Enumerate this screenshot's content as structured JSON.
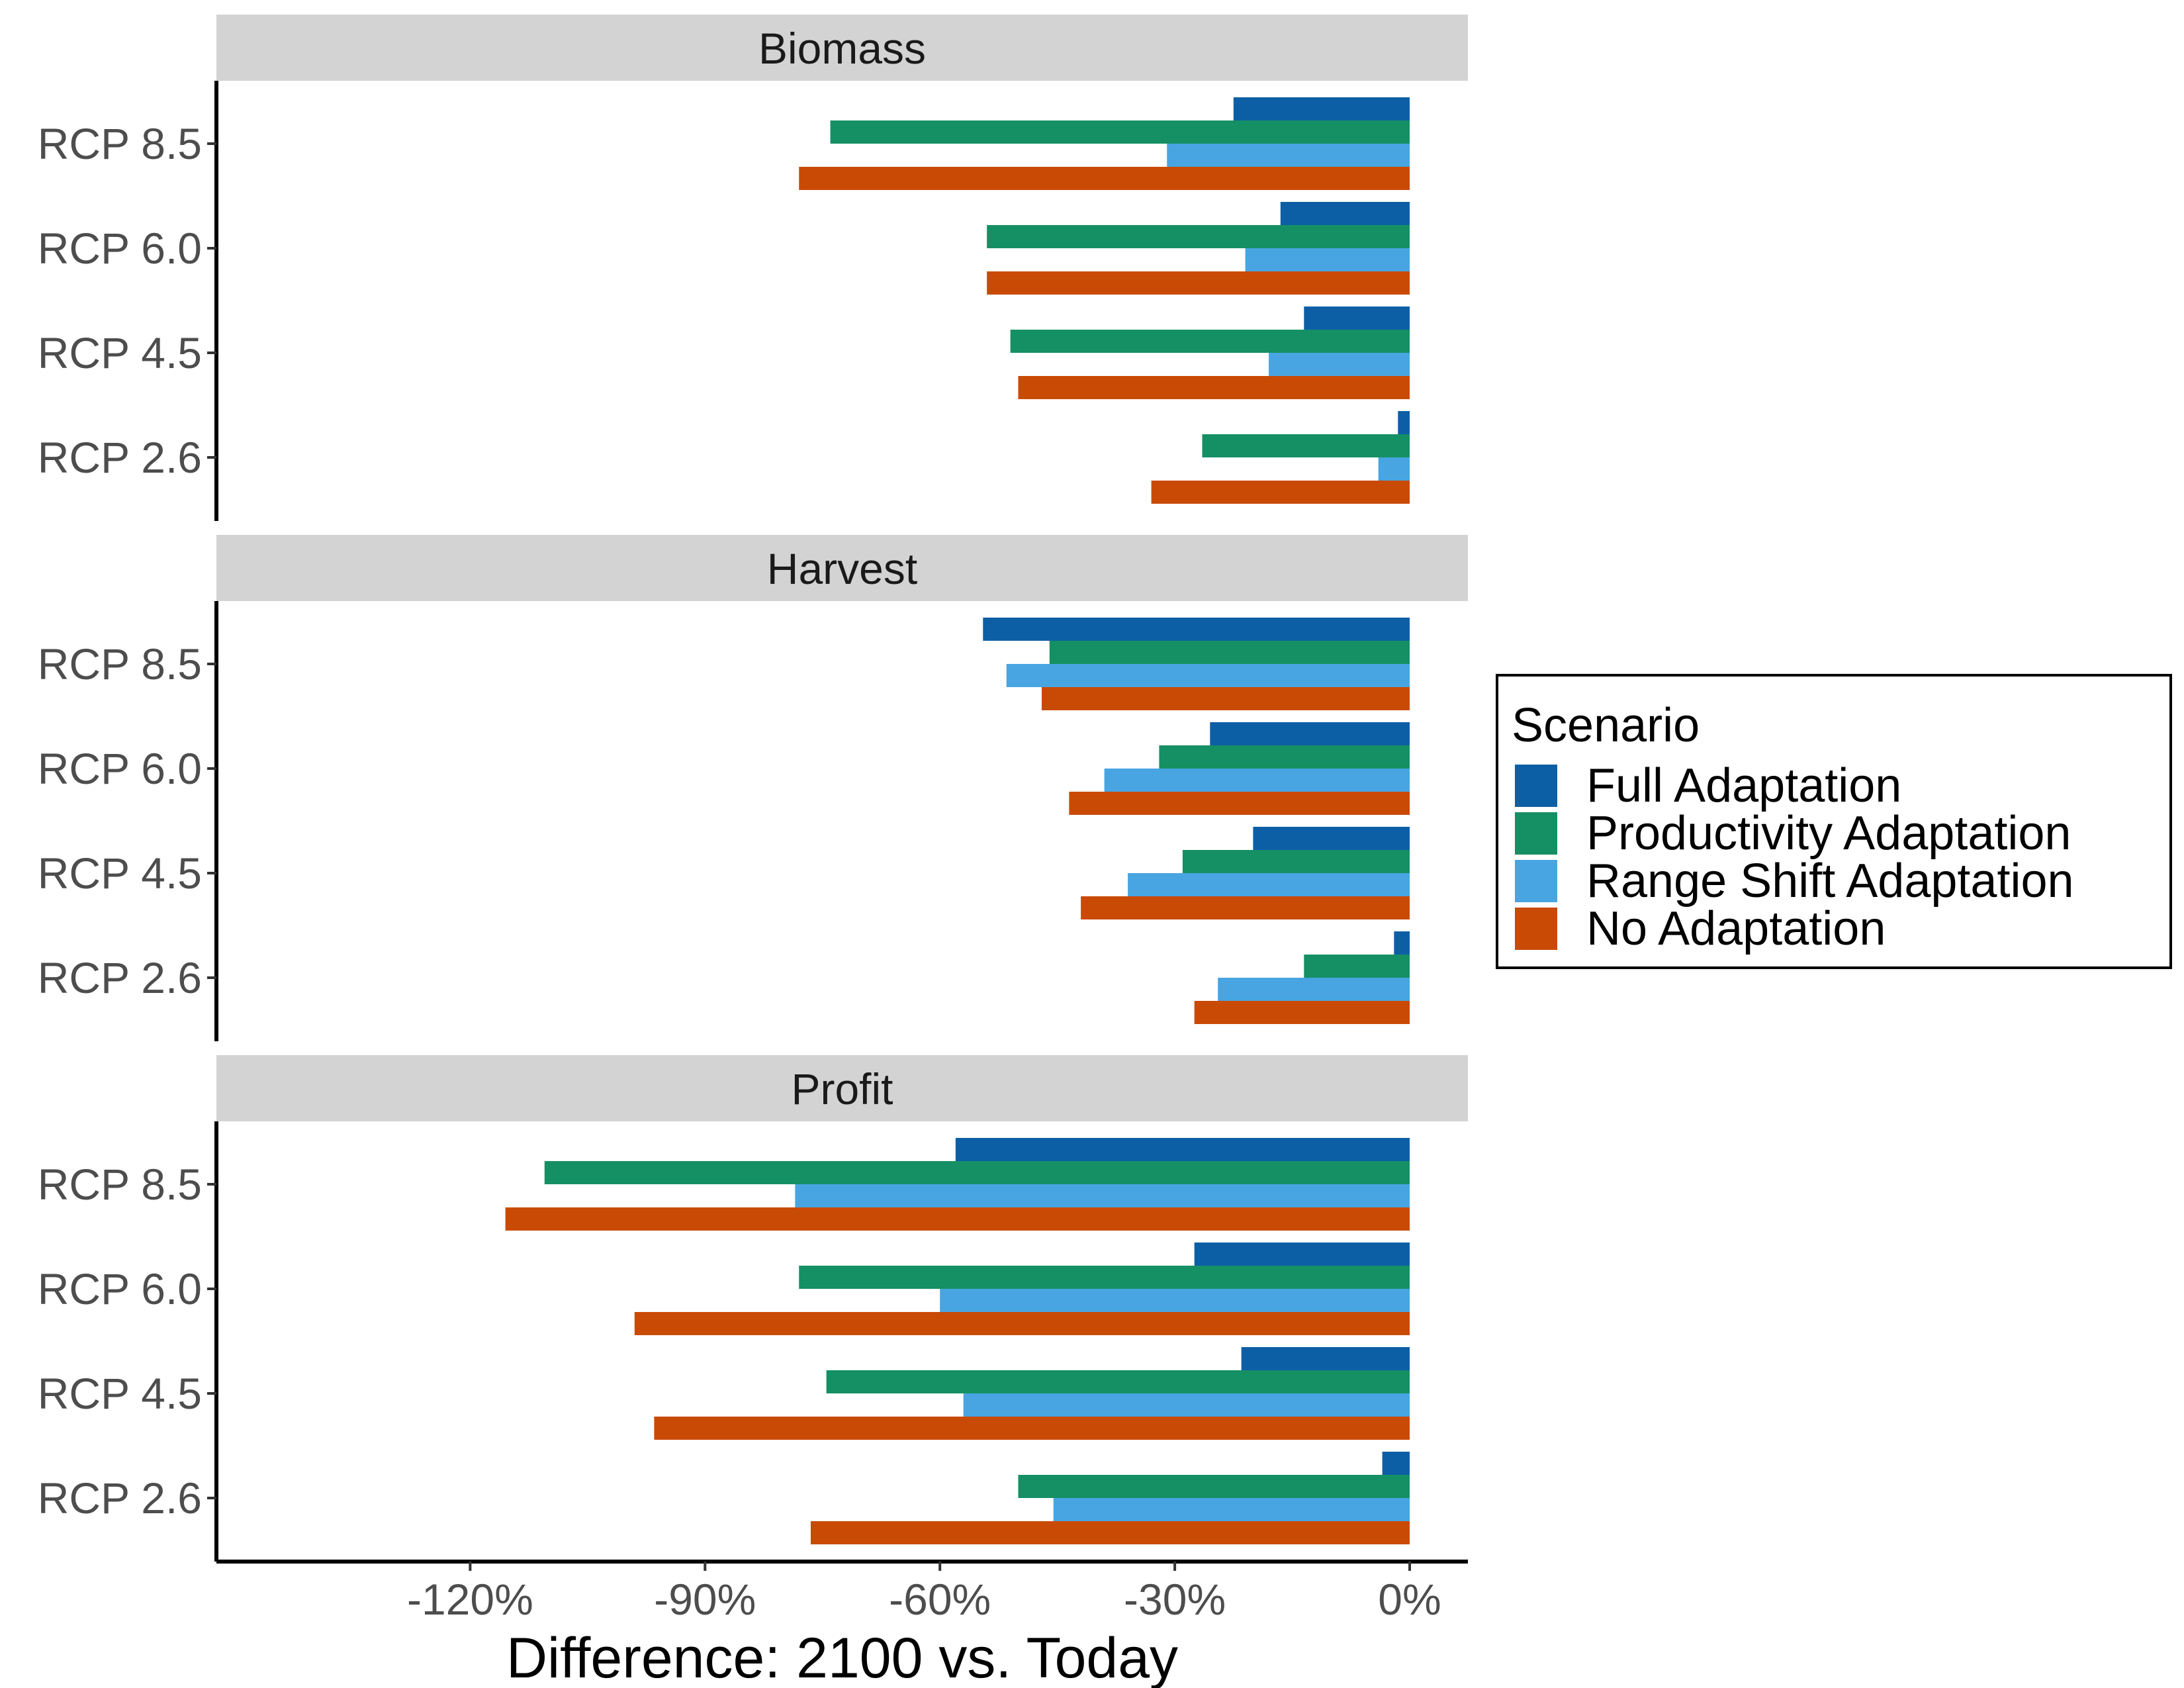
{
  "chart_data": {
    "type": "bar",
    "orientation": "horizontal",
    "xlabel": "Difference: 2100 vs. Today",
    "xlim": [
      -122,
      0
    ],
    "xticks": [
      -120,
      -90,
      -60,
      -30,
      0
    ],
    "xtick_labels": [
      "-120%",
      "-90%",
      "-60%",
      "-30%",
      "0%"
    ],
    "categories": [
      "RCP 8.5",
      "RCP 6.0",
      "RCP 4.5",
      "RCP 2.6"
    ],
    "legend": {
      "title": "Scenario",
      "placement": "right",
      "entries": [
        "Full Adaptation",
        "Productivity Adaptation",
        "Range Shift Adaptation",
        "No Adaptation"
      ]
    },
    "colors": {
      "Full Adaptation": "#0d5fa5",
      "Productivity Adaptation": "#159064",
      "Range Shift Adaptation": "#48a5e2",
      "No Adaptation": "#c94a05"
    },
    "panels": [
      {
        "title": "Biomass",
        "series": [
          {
            "name": "Full Adaptation",
            "values": [
              -22.5,
              -16.5,
              -13.5,
              -1.5
            ]
          },
          {
            "name": "Productivity Adaptation",
            "values": [
              -74,
              -54,
              -51,
              -26.5
            ]
          },
          {
            "name": "Range Shift Adaptation",
            "values": [
              -31,
              -21,
              -18,
              -4
            ]
          },
          {
            "name": "No Adaptation",
            "values": [
              -78,
              -54,
              -50,
              -33
            ]
          }
        ]
      },
      {
        "title": "Harvest",
        "series": [
          {
            "name": "Full Adaptation",
            "values": [
              -54.5,
              -25.5,
              -20,
              -2
            ]
          },
          {
            "name": "Productivity Adaptation",
            "values": [
              -46,
              -32,
              -29,
              -13.5
            ]
          },
          {
            "name": "Range Shift Adaptation",
            "values": [
              -51.5,
              -39,
              -36,
              -24.5
            ]
          },
          {
            "name": "No Adaptation",
            "values": [
              -47,
              -43.5,
              -42,
              -27.5
            ]
          }
        ]
      },
      {
        "title": "Profit",
        "series": [
          {
            "name": "Full Adaptation",
            "values": [
              -58,
              -27.5,
              -21.5,
              -3.5
            ]
          },
          {
            "name": "Productivity Adaptation",
            "values": [
              -110.5,
              -78,
              -74.5,
              -50
            ]
          },
          {
            "name": "Range Shift Adaptation",
            "values": [
              -78.5,
              -60,
              -57,
              -45.5
            ]
          },
          {
            "name": "No Adaptation",
            "values": [
              -115.5,
              -99,
              -96.5,
              -76.5
            ]
          }
        ]
      }
    ]
  }
}
